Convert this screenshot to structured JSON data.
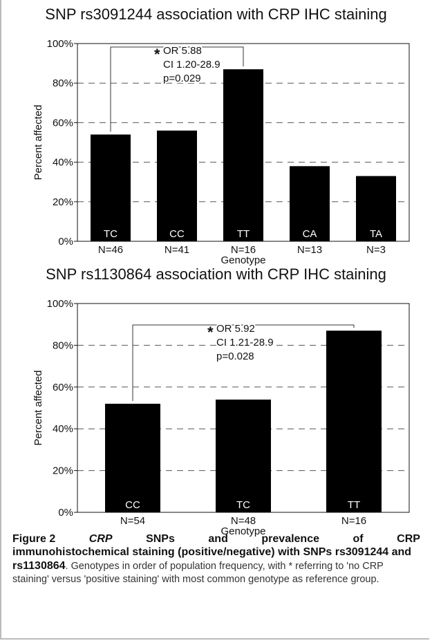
{
  "chart_data": [
    {
      "type": "bar",
      "title": "SNP rs3091244 association with CRP IHC staining",
      "xlabel": "Genotype",
      "ylabel": "Percent affected",
      "ylim": [
        0,
        100
      ],
      "yticks": [
        "0%",
        "20%",
        "40%",
        "60%",
        "80%",
        "100%"
      ],
      "grid": "dashed horizontal",
      "categories": [
        "TC",
        "CC",
        "TT",
        "CA",
        "TA"
      ],
      "n_labels": [
        "N=46",
        "N=41",
        "N=16",
        "N=13",
        "N=3"
      ],
      "values": [
        54,
        56,
        87,
        38,
        33
      ],
      "bar_color": "#000000",
      "annotation": {
        "marker": "*",
        "lines": [
          "OR 5.88",
          "CI 1.20-28.9",
          "p=0.029"
        ],
        "from_category": "TC",
        "to_category": "TT"
      }
    },
    {
      "type": "bar",
      "title": "SNP rs1130864 association with CRP IHC staining",
      "xlabel": "Genotype",
      "ylabel": "Percent affected",
      "ylim": [
        0,
        100
      ],
      "yticks": [
        "0%",
        "20%",
        "40%",
        "60%",
        "80%",
        "100%"
      ],
      "grid": "dashed horizontal",
      "categories": [
        "CC",
        "TC",
        "TT"
      ],
      "n_labels": [
        "N=54",
        "N=48",
        "N=16"
      ],
      "values": [
        52,
        54,
        87
      ],
      "bar_color": "#000000",
      "annotation": {
        "marker": "*",
        "lines": [
          "OR 5.92",
          "CI 1.21-28.9",
          "p=0.028"
        ],
        "from_category": "CC",
        "to_category": "TT"
      }
    }
  ],
  "caption": {
    "figure_label": "Figure 2",
    "gene": "CRP",
    "line1_words": [
      "SNPs",
      "and",
      "prevalence",
      "of",
      "CRP"
    ],
    "line2": "immunohistochemical staining (positive/negative) with SNPs rs3091244 and rs1130864",
    "rest": ". Genotypes in order of population frequency, with * referring to 'no CRP staining' versus 'positive staining' with most common genotype as reference group."
  }
}
